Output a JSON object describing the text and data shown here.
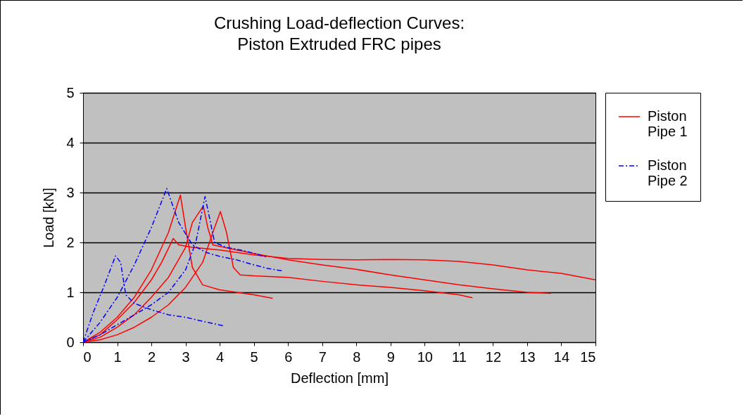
{
  "chart_data": {
    "type": "line",
    "title": "Crushing Load-deflection Curves:",
    "subtitle": "Piston Extruded FRC pipes",
    "xlabel": "Deflection [mm]",
    "ylabel": "Load [kN]",
    "xlim": [
      0,
      15
    ],
    "xticks": [
      0,
      1,
      2,
      3,
      4,
      5,
      6,
      7,
      8,
      9,
      10,
      11,
      12,
      13,
      14,
      15
    ],
    "ylim": [
      0,
      5
    ],
    "yticks": [
      0,
      1,
      2,
      3,
      4,
      5
    ],
    "grid": "y",
    "legend": "right",
    "marker": "none",
    "series": [
      {
        "name": "Piston Pipe 1",
        "color": "#ff0000",
        "line_style": "solid",
        "x": [
          0,
          0.5,
          1,
          1.5,
          2,
          2.5,
          2.85,
          3.0,
          3.2,
          3.5,
          4,
          4.5,
          5,
          5.55
        ],
        "values": [
          0,
          0.2,
          0.5,
          0.9,
          1.45,
          2.2,
          2.95,
          2.3,
          1.5,
          1.15,
          1.05,
          1.0,
          0.95,
          0.88
        ]
      },
      {
        "color": "#ff0000",
        "line_style": "solid",
        "x": [
          0,
          0.5,
          1,
          1.5,
          2,
          2.3,
          2.64,
          2.8,
          3.2,
          4,
          5,
          6,
          7,
          8,
          9,
          10,
          11,
          12,
          13,
          14,
          15
        ],
        "values": [
          0,
          0.15,
          0.45,
          0.8,
          1.25,
          1.6,
          2.08,
          1.95,
          1.9,
          1.85,
          1.75,
          1.68,
          1.66,
          1.65,
          1.66,
          1.65,
          1.62,
          1.55,
          1.45,
          1.38,
          1.25
        ]
      },
      {
        "color": "#ff0000",
        "line_style": "solid",
        "x": [
          0,
          0.5,
          1,
          1.5,
          2,
          2.5,
          3,
          3.2,
          3.52,
          3.65,
          3.8,
          4.5,
          5,
          6,
          7,
          8,
          9,
          10,
          11,
          12,
          13,
          13.7
        ],
        "values": [
          0,
          0.1,
          0.3,
          0.55,
          0.9,
          1.3,
          1.9,
          2.4,
          2.73,
          2.3,
          1.95,
          1.85,
          1.78,
          1.65,
          1.55,
          1.46,
          1.35,
          1.25,
          1.15,
          1.07,
          1.0,
          0.98
        ]
      },
      {
        "color": "#ff0000",
        "line_style": "solid",
        "x": [
          0,
          0.5,
          1,
          1.5,
          2,
          2.5,
          3,
          3.5,
          3.8,
          4.02,
          4.2,
          4.4,
          4.6,
          5,
          6,
          7,
          8,
          9,
          10,
          11,
          11.4
        ],
        "values": [
          0,
          0.05,
          0.15,
          0.3,
          0.5,
          0.75,
          1.1,
          1.6,
          2.2,
          2.62,
          2.2,
          1.5,
          1.35,
          1.33,
          1.3,
          1.22,
          1.15,
          1.1,
          1.03,
          0.95,
          0.89
        ]
      },
      {
        "name": "Piston Pipe 2",
        "color": "#0000ff",
        "line_style": "dashed",
        "x": [
          0,
          0.3,
          0.6,
          0.95,
          1.1,
          1.25,
          1.5,
          2,
          2.5,
          3,
          3.5,
          4.1
        ],
        "values": [
          0,
          0.6,
          1.1,
          1.73,
          1.6,
          0.95,
          0.78,
          0.65,
          0.55,
          0.5,
          0.42,
          0.33
        ]
      },
      {
        "color": "#0000ff",
        "line_style": "dashed",
        "x": [
          0,
          0.5,
          1,
          1.5,
          2,
          2.45,
          2.8,
          3.2,
          3.6,
          4,
          4.5,
          5,
          5.4,
          5.83
        ],
        "values": [
          0,
          0.4,
          0.9,
          1.55,
          2.3,
          3.08,
          2.4,
          1.95,
          1.8,
          1.72,
          1.65,
          1.55,
          1.48,
          1.43
        ]
      },
      {
        "color": "#0000ff",
        "line_style": "dashed",
        "x": [
          0,
          0.5,
          1,
          1.5,
          2,
          2.5,
          3,
          3.3,
          3.57,
          3.7,
          3.85,
          4.2,
          4.6,
          5,
          5.4
        ],
        "values": [
          0,
          0.15,
          0.35,
          0.55,
          0.75,
          1.0,
          1.45,
          2.0,
          2.92,
          2.5,
          2.0,
          1.9,
          1.85,
          1.78,
          1.7
        ]
      }
    ]
  }
}
